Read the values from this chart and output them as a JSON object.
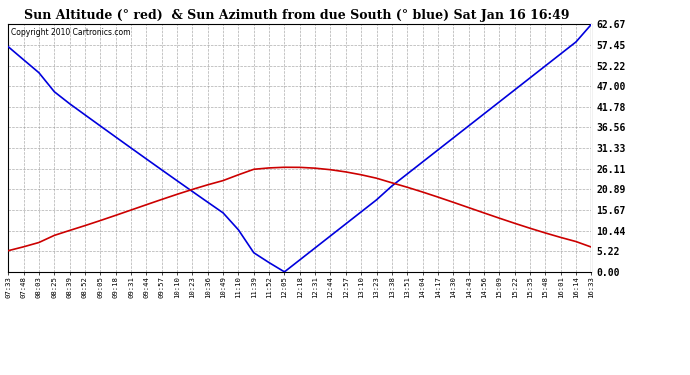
{
  "title": "Sun Altitude (° red)  & Sun Azimuth from due South (° blue) Sat Jan 16 16:49",
  "copyright": "Copyright 2010 Cartronics.com",
  "yticks": [
    0.0,
    5.22,
    10.44,
    15.67,
    20.89,
    26.11,
    31.33,
    36.56,
    41.78,
    47.0,
    52.22,
    57.45,
    62.67
  ],
  "ymax": 62.67,
  "ymin": 0.0,
  "bg_color": "#ffffff",
  "plot_bg_color": "#ffffff",
  "grid_color": "#999999",
  "line_color_blue": "#0000dd",
  "line_color_red": "#cc0000",
  "x_labels": [
    "07:33",
    "07:48",
    "08:03",
    "08:25",
    "08:39",
    "08:52",
    "09:05",
    "09:18",
    "09:31",
    "09:44",
    "09:57",
    "10:10",
    "10:23",
    "10:36",
    "10:49",
    "11:10",
    "11:39",
    "11:52",
    "12:05",
    "12:18",
    "12:31",
    "12:44",
    "12:57",
    "13:10",
    "13:23",
    "13:38",
    "13:51",
    "14:04",
    "14:17",
    "14:30",
    "14:43",
    "14:56",
    "15:09",
    "15:22",
    "15:35",
    "15:48",
    "16:01",
    "16:14",
    "16:33"
  ]
}
